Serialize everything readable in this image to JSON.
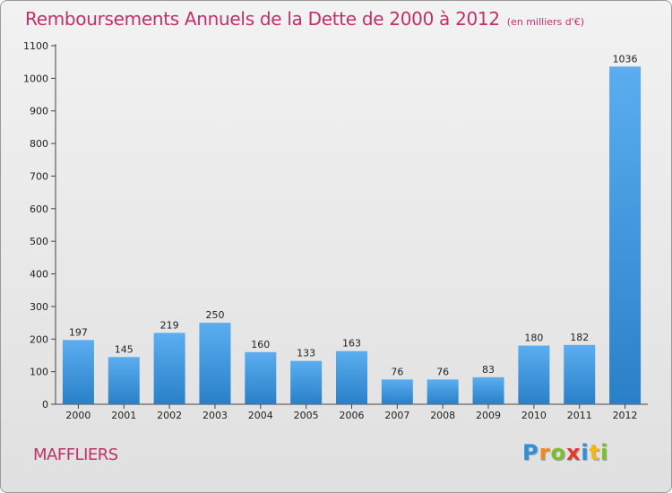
{
  "header": {
    "title": "Remboursements Annuels de la Dette de 2000 à 2012",
    "subtitle": "(en milliers d'€)"
  },
  "footer": {
    "commune": "MAFFLIERS",
    "logo_letters": [
      "P",
      "r",
      "o",
      "x",
      "i",
      "t",
      "i"
    ]
  },
  "colors": {
    "title": "#c0306a",
    "bar_top": "#5aaef0",
    "bar_bottom": "#2a80c8"
  },
  "chart_data": {
    "type": "bar",
    "title": "Remboursements Annuels de la Dette de 2000 à 2012",
    "subtitle": "(en milliers d'€)",
    "xlabel": "",
    "ylabel": "",
    "categories": [
      "2000",
      "2001",
      "2002",
      "2003",
      "2004",
      "2005",
      "2006",
      "2007",
      "2008",
      "2009",
      "2010",
      "2011",
      "2012"
    ],
    "values": [
      197,
      145,
      219,
      250,
      160,
      133,
      163,
      76,
      76,
      83,
      180,
      182,
      1036
    ],
    "ylim": [
      0,
      1100
    ],
    "yticks": [
      0,
      100,
      200,
      300,
      400,
      500,
      600,
      700,
      800,
      900,
      1000,
      1100
    ],
    "grid": false,
    "legend": "none"
  }
}
